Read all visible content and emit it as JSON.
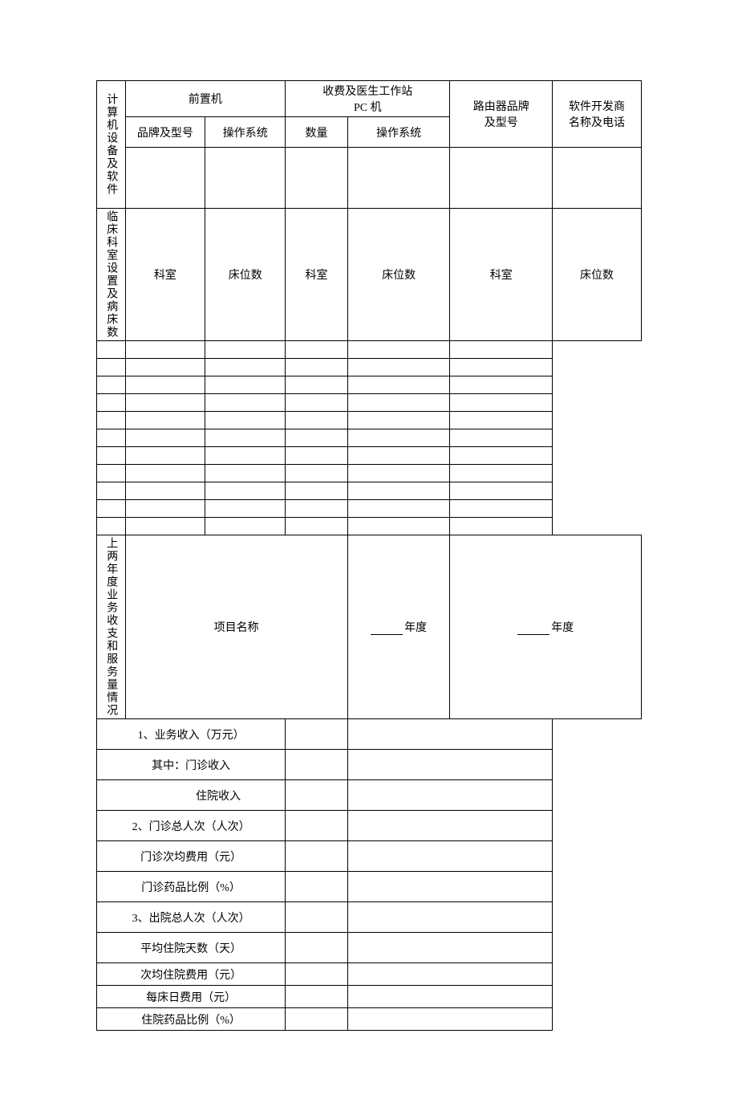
{
  "section1": {
    "title": "计算机设备及软件",
    "frontend": {
      "header": "前置机",
      "brand_model": "品牌及型号",
      "os": "操作系统"
    },
    "pc_station": {
      "header_line1": "收费及医生工作站",
      "header_line2": "PC 机",
      "quantity": "数量",
      "os": "操作系统"
    },
    "router": {
      "line1": "路由器品牌",
      "line2": "及型号"
    },
    "vendor": {
      "line1": "软件开发商",
      "line2": "名称及电话"
    }
  },
  "section2": {
    "title": "临床科室设置及病床数",
    "dept_label": "科室",
    "bed_label": "床位数",
    "row_count": 11
  },
  "section3": {
    "title": "上两年度业务收支和服务量情况",
    "project_name_label": "项目名称",
    "year_suffix": "年度",
    "items": [
      {
        "label": "1、业务收入（万元）",
        "indent": false
      },
      {
        "label": "其中：门诊收入",
        "indent": true
      },
      {
        "label": "住院收入",
        "indent": true,
        "extra_indent": true
      },
      {
        "label": "2、门诊总人次（人次）",
        "indent": false
      },
      {
        "label": "门诊次均费用（元）",
        "indent": true
      },
      {
        "label": "门诊药品比例（%）",
        "indent": true
      },
      {
        "label": "3、出院总人次（人次）",
        "indent": false
      },
      {
        "label": "平均住院天数（天）",
        "indent": true
      },
      {
        "label": "次均住院费用（元）",
        "indent": true
      },
      {
        "label": "每床日费用（元）",
        "indent": true
      },
      {
        "label": "住院药品比例（%）",
        "indent": true
      }
    ]
  },
  "colors": {
    "border": "#000000",
    "text": "#000000",
    "background": "#ffffff"
  },
  "typography": {
    "font_family": "SimSun",
    "body_fontsize": 14
  }
}
